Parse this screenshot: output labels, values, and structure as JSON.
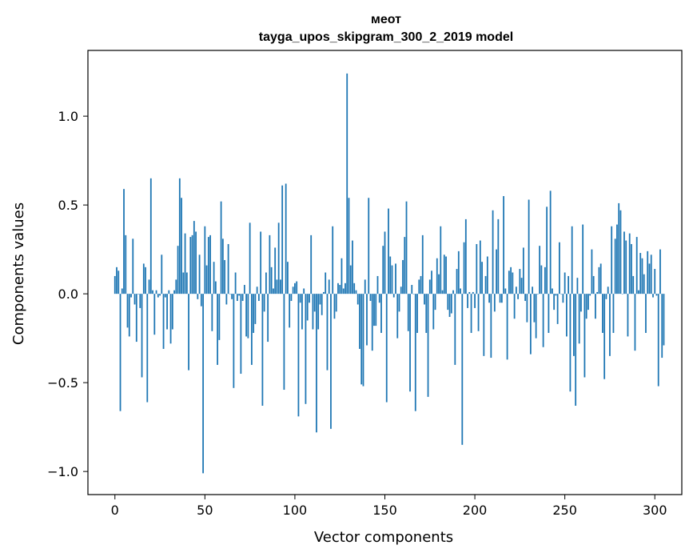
{
  "chart_data": {
    "type": "bar",
    "title": "меот",
    "subtitle": "tayga_upos_skipgram_300_2_2019 model",
    "xlabel": "Vector components",
    "ylabel": "Components values",
    "xlim": [
      -15,
      315
    ],
    "ylim": [
      -1.13,
      1.37
    ],
    "xticks": [
      0,
      50,
      100,
      150,
      200,
      250,
      300
    ],
    "xtick_labels": [
      "0",
      "50",
      "100",
      "150",
      "200",
      "250",
      "300"
    ],
    "yticks": [
      -1.0,
      -0.5,
      0.0,
      0.5,
      1.0
    ],
    "ytick_labels": [
      "−1.0",
      "−0.5",
      "0.0",
      "0.5",
      "1.0"
    ],
    "grid": false,
    "bar_color": "#1f77b4",
    "values": [
      0.1,
      0.15,
      0.13,
      -0.66,
      0.03,
      0.59,
      0.33,
      -0.19,
      -0.24,
      -0.02,
      0.31,
      -0.06,
      -0.27,
      0.0,
      -0.08,
      -0.47,
      0.17,
      0.15,
      -0.61,
      0.08,
      0.65,
      0.02,
      -0.23,
      0.02,
      -0.02,
      -0.01,
      0.22,
      -0.31,
      -0.02,
      -0.2,
      0.02,
      -0.28,
      -0.2,
      0.02,
      0.08,
      0.27,
      0.65,
      0.54,
      0.12,
      0.34,
      0.12,
      -0.43,
      0.32,
      0.33,
      0.41,
      0.35,
      -0.03,
      0.22,
      -0.07,
      -1.01,
      0.38,
      0.16,
      0.32,
      0.33,
      -0.21,
      0.18,
      0.07,
      -0.4,
      -0.26,
      0.52,
      0.31,
      0.19,
      -0.06,
      0.28,
      0.0,
      -0.03,
      -0.53,
      0.12,
      -0.04,
      -0.01,
      -0.45,
      -0.04,
      0.05,
      -0.24,
      -0.25,
      0.4,
      -0.4,
      -0.22,
      -0.17,
      0.04,
      -0.04,
      0.35,
      -0.63,
      -0.1,
      0.12,
      -0.27,
      0.33,
      0.15,
      0.03,
      0.26,
      0.08,
      0.4,
      0.08,
      0.61,
      -0.54,
      0.62,
      0.18,
      -0.19,
      -0.04,
      0.04,
      0.06,
      0.07,
      -0.69,
      -0.05,
      -0.2,
      0.03,
      -0.62,
      -0.15,
      -0.05,
      0.33,
      -0.2,
      -0.1,
      -0.78,
      -0.2,
      -0.06,
      -0.12,
      0.01,
      0.12,
      -0.43,
      0.08,
      -0.76,
      0.38,
      -0.14,
      -0.1,
      0.06,
      0.05,
      0.2,
      0.03,
      0.06,
      1.24,
      0.54,
      0.16,
      0.3,
      0.06,
      0.02,
      -0.06,
      -0.31,
      -0.51,
      -0.52,
      0.08,
      -0.29,
      0.54,
      -0.04,
      -0.32,
      -0.18,
      -0.18,
      0.1,
      -0.05,
      -0.22,
      0.27,
      0.35,
      -0.61,
      0.48,
      0.21,
      0.16,
      -0.02,
      0.17,
      -0.25,
      -0.1,
      0.04,
      0.19,
      0.32,
      0.52,
      -0.21,
      -0.55,
      0.05,
      0.0,
      -0.66,
      -0.22,
      0.08,
      0.1,
      0.33,
      -0.06,
      -0.22,
      -0.58,
      0.08,
      0.13,
      -0.2,
      -0.09,
      0.2,
      0.11,
      0.38,
      0.02,
      0.22,
      0.21,
      -0.09,
      -0.13,
      -0.11,
      0.02,
      -0.4,
      0.14,
      0.24,
      0.03,
      -0.85,
      0.29,
      0.42,
      -0.08,
      0.01,
      -0.22,
      0.01,
      -0.08,
      0.28,
      -0.21,
      0.3,
      0.18,
      -0.35,
      0.1,
      0.21,
      -0.05,
      -0.36,
      0.47,
      -0.1,
      0.25,
      0.42,
      -0.05,
      -0.05,
      0.55,
      0.03,
      -0.37,
      0.13,
      0.15,
      0.12,
      -0.14,
      0.04,
      -0.03,
      0.14,
      0.09,
      0.26,
      -0.04,
      -0.16,
      0.53,
      -0.34,
      0.04,
      -0.16,
      -0.25,
      0.0,
      0.27,
      0.16,
      -0.3,
      0.15,
      0.49,
      -0.22,
      0.58,
      0.03,
      -0.09,
      -0.01,
      -0.17,
      0.29,
      0.0,
      -0.05,
      0.12,
      -0.24,
      0.1,
      -0.55,
      0.38,
      -0.35,
      -0.63,
      0.09,
      -0.28,
      -0.1,
      0.39,
      -0.47,
      -0.14,
      -0.09,
      -0.01,
      0.25,
      0.1,
      -0.14,
      0.01,
      0.15,
      0.17,
      -0.22,
      -0.48,
      -0.03,
      0.04,
      -0.35,
      0.38,
      -0.22,
      0.31,
      0.39,
      0.51,
      0.47,
      0.0,
      0.35,
      0.3,
      -0.24,
      0.34,
      0.28,
      0.1,
      -0.32,
      0.32,
      0.02,
      0.23,
      0.2,
      0.11,
      -0.22,
      0.24,
      0.17,
      0.22,
      -0.02,
      0.14,
      -0.01,
      -0.52,
      0.25,
      -0.36,
      -0.29
    ]
  }
}
